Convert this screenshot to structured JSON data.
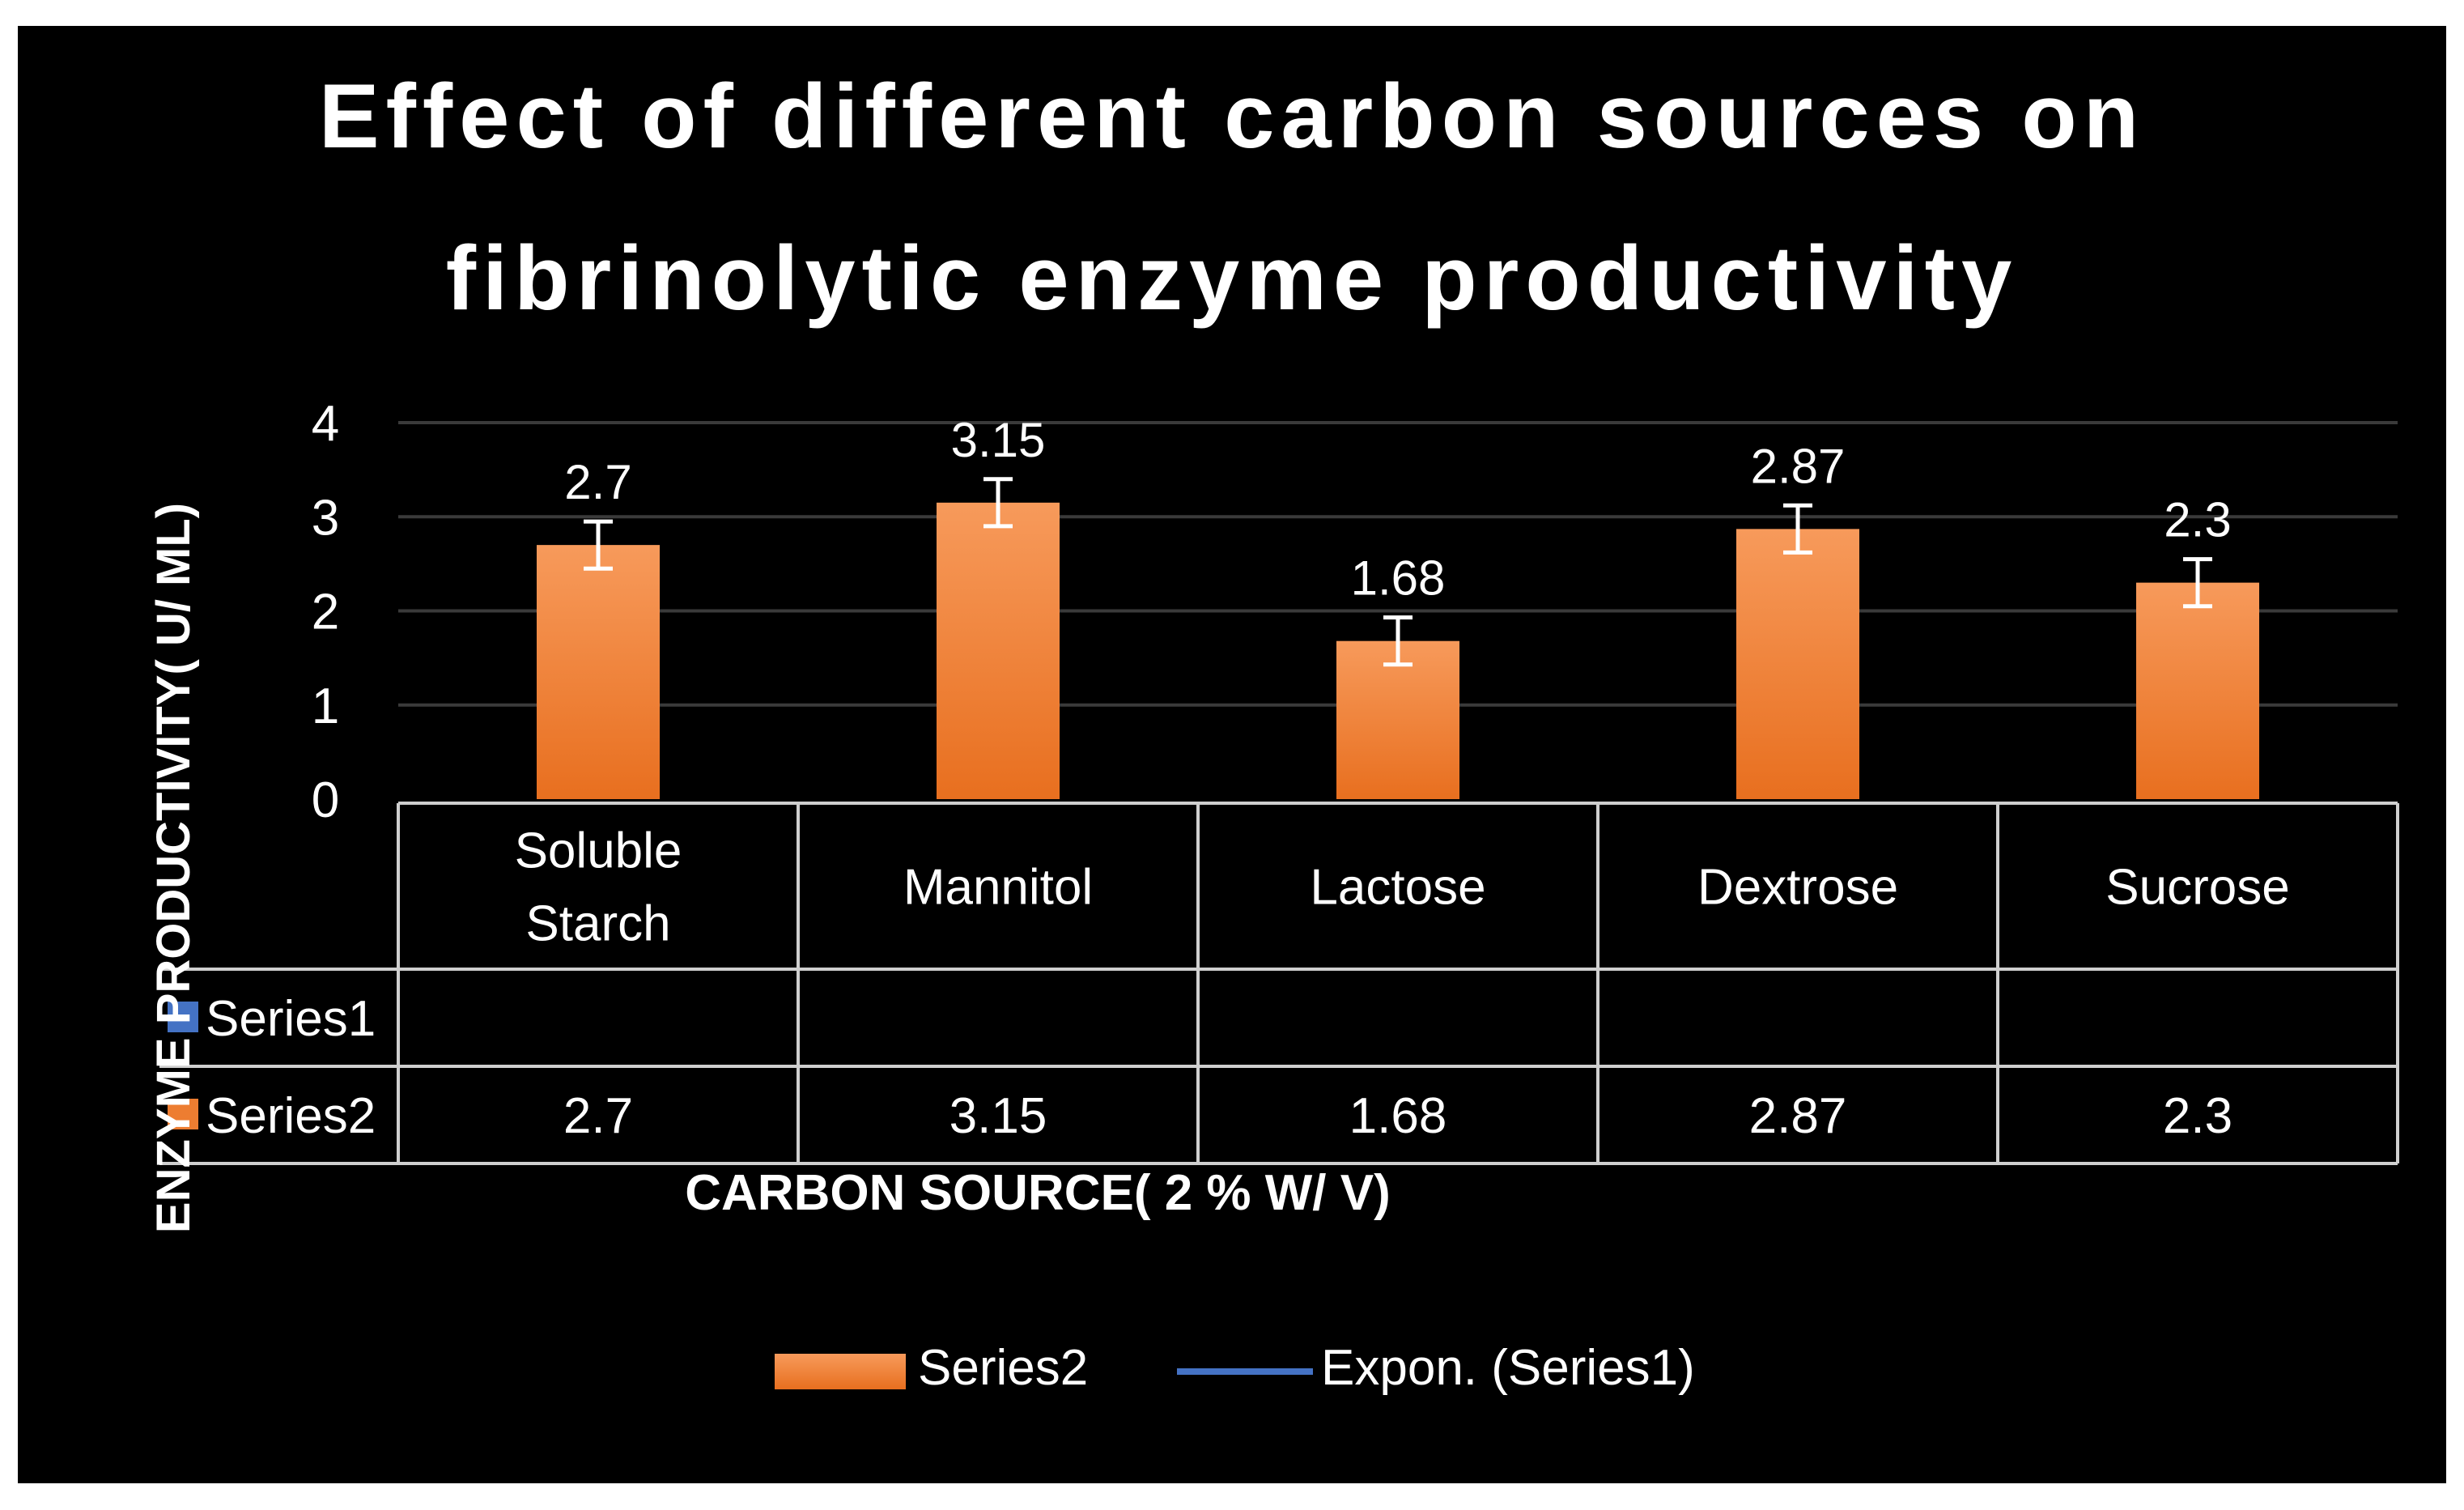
{
  "chart_data": {
    "type": "bar",
    "title_lines": [
      "Effect of different carbon sources on",
      "fibrinolytic enzyme productivity"
    ],
    "ylabel": "ENZYME PRODUCTIVITY( U/ ML)",
    "xlabel": "CARBON SOURCE( 2 % W/ V)",
    "ylim": [
      0,
      4
    ],
    "yticks": [
      "0",
      "1",
      "2",
      "3",
      "4"
    ],
    "categories": [
      [
        "Soluble",
        "Starch"
      ],
      [
        "Mannitol"
      ],
      [
        "Lactose"
      ],
      [
        "Dextrose"
      ],
      [
        "Sucrose"
      ]
    ],
    "series": [
      {
        "name": "Series1",
        "color": "#4472C4",
        "values": [
          null,
          null,
          null,
          null,
          null
        ]
      },
      {
        "name": "Series2",
        "color": "#ED7D31",
        "values": [
          2.7,
          3.15,
          1.68,
          2.87,
          2.3
        ],
        "labels": [
          "2.7",
          "3.15",
          "1.68",
          "2.87",
          "2.3"
        ],
        "error": 0.25
      }
    ],
    "legend": {
      "placement": "bottom",
      "entries": [
        {
          "label": "Series2",
          "kind": "bar",
          "color": "#ED7D31"
        },
        {
          "label": "Expon. (Series1)",
          "kind": "line",
          "color": "#4472C4"
        }
      ]
    },
    "grid": true,
    "data_table": true
  }
}
